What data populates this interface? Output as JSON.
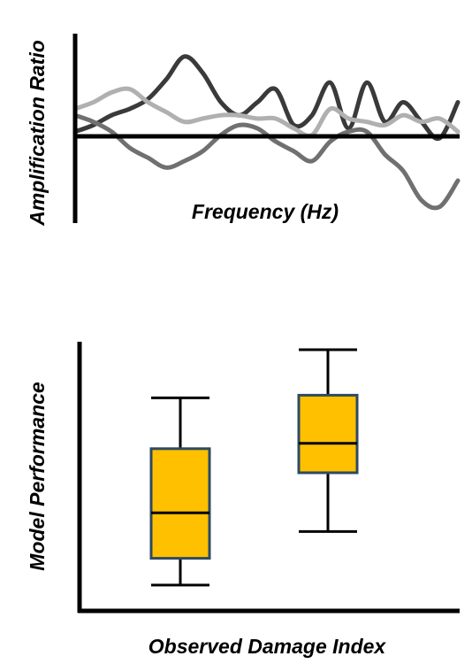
{
  "chart_data": [
    {
      "type": "line",
      "title": "",
      "xlabel": "Frequency (Hz)",
      "ylabel": "Amplification Ratio",
      "grid": false,
      "legend": "none",
      "x": [
        0,
        1,
        2,
        3,
        4,
        5,
        6,
        7,
        8,
        9,
        10,
        11,
        12,
        13,
        14,
        15,
        16,
        17,
        18,
        19,
        20,
        21
      ],
      "series": [
        {
          "color": "#3a3a3a",
          "values": [
            0.1,
            0.2,
            0.35,
            0.45,
            0.6,
            0.9,
            1.25,
            1.0,
            0.55,
            0.35,
            0.55,
            0.75,
            0.2,
            0.35,
            0.85,
            0.15,
            0.85,
            0.25,
            0.55,
            0.25,
            0.0,
            0.55
          ]
        },
        {
          "color": "#b0b0b0",
          "values": [
            0.45,
            0.55,
            0.7,
            0.75,
            0.55,
            0.4,
            0.25,
            0.3,
            0.35,
            0.35,
            0.3,
            0.3,
            0.15,
            0.05,
            0.45,
            0.3,
            0.25,
            0.2,
            0.35,
            0.25,
            0.3,
            0.1
          ]
        },
        {
          "color": "#707070",
          "values": [
            0.35,
            0.25,
            0.1,
            -0.15,
            -0.3,
            -0.45,
            -0.35,
            -0.2,
            0.05,
            0.2,
            0.15,
            -0.05,
            -0.2,
            -0.35,
            -0.05,
            0.1,
            0.1,
            -0.25,
            -0.5,
            -0.95,
            -1.05,
            -0.65
          ]
        }
      ],
      "ylim": [
        -1.3,
        1.6
      ]
    },
    {
      "type": "box",
      "title": "",
      "xlabel": "Observed Damage Index",
      "ylabel": "Model Performance",
      "grid": false,
      "legend": "none",
      "box_fill": "#ffc000",
      "box_stroke": "#2e4a62",
      "series": [
        {
          "whisker_low": 0.09,
          "q1": 0.19,
          "median": 0.36,
          "q3": 0.6,
          "whisker_high": 0.79
        },
        {
          "whisker_low": 0.29,
          "q1": 0.51,
          "median": 0.62,
          "q3": 0.8,
          "whisker_high": 0.97
        }
      ],
      "ylim": [
        0,
        1
      ]
    }
  ]
}
